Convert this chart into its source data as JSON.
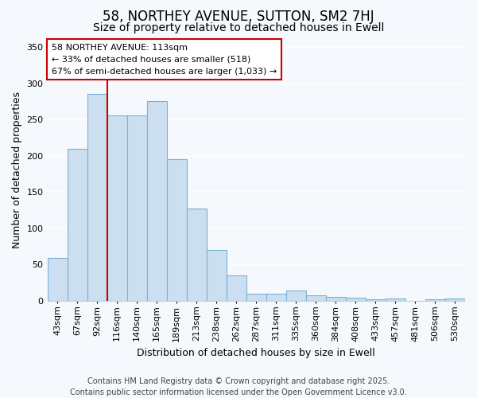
{
  "title1": "58, NORTHEY AVENUE, SUTTON, SM2 7HJ",
  "title2": "Size of property relative to detached houses in Ewell",
  "xlabel": "Distribution of detached houses by size in Ewell",
  "ylabel": "Number of detached properties",
  "categories": [
    "43sqm",
    "67sqm",
    "92sqm",
    "116sqm",
    "140sqm",
    "165sqm",
    "189sqm",
    "213sqm",
    "238sqm",
    "262sqm",
    "287sqm",
    "311sqm",
    "335sqm",
    "360sqm",
    "384sqm",
    "408sqm",
    "433sqm",
    "457sqm",
    "481sqm",
    "506sqm",
    "530sqm"
  ],
  "values": [
    59,
    210,
    285,
    256,
    256,
    275,
    195,
    127,
    70,
    35,
    10,
    10,
    14,
    8,
    6,
    4,
    2,
    3,
    0,
    2,
    3
  ],
  "bar_color": "#ccdff0",
  "bar_edge_color": "#7ab0d4",
  "vline_after_index": 2,
  "vline_color": "#cc0000",
  "annotation_text": "58 NORTHEY AVENUE: 113sqm\n← 33% of detached houses are smaller (518)\n67% of semi-detached houses are larger (1,033) →",
  "annotation_box_facecolor": "#ffffff",
  "annotation_box_edgecolor": "#cc0000",
  "ylim": [
    0,
    360
  ],
  "yticks": [
    0,
    50,
    100,
    150,
    200,
    250,
    300,
    350
  ],
  "fig_bg": "#f5f8fc",
  "plot_bg": "#f5f8fc",
  "grid_color": "#ffffff",
  "title1_fontsize": 12,
  "title2_fontsize": 10,
  "axis_label_fontsize": 9,
  "tick_fontsize": 8,
  "annotation_fontsize": 8,
  "footer_fontsize": 7,
  "footer": "Contains HM Land Registry data © Crown copyright and database right 2025.\nContains public sector information licensed under the Open Government Licence v3.0."
}
